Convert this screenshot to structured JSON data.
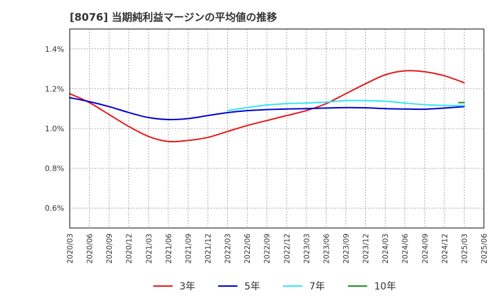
{
  "chart_data": {
    "type": "line",
    "title": "[8076]  当期純利益マージンの平均値の推移",
    "xlabel": "",
    "ylabel": "",
    "x_ticks": [
      "2020/03",
      "2020/06",
      "2020/09",
      "2020/12",
      "2021/03",
      "2021/06",
      "2021/09",
      "2021/12",
      "2022/03",
      "2022/06",
      "2022/09",
      "2022/12",
      "2023/03",
      "2023/06",
      "2023/09",
      "2023/12",
      "2024/03",
      "2024/06",
      "2024/09",
      "2024/12",
      "2025/03",
      "2025/06"
    ],
    "y_ticks": [
      "0.6%",
      "0.8%",
      "1.0%",
      "1.2%",
      "1.4%"
    ],
    "y_tick_values": [
      0.6,
      0.8,
      1.0,
      1.2,
      1.4
    ],
    "ylim": [
      0.5,
      1.5
    ],
    "grid": true,
    "legend_position": "bottom",
    "series": [
      {
        "name": "3年",
        "color": "#e31a1c",
        "x": [
          "2020/03",
          "2020/06",
          "2020/09",
          "2020/12",
          "2021/03",
          "2021/06",
          "2021/09",
          "2021/12",
          "2022/03",
          "2022/06",
          "2022/09",
          "2022/12",
          "2023/03",
          "2023/06",
          "2023/09",
          "2023/12",
          "2024/03",
          "2024/06",
          "2024/09",
          "2024/12",
          "2025/03"
        ],
        "values": [
          1.175,
          1.13,
          1.07,
          1.01,
          0.96,
          0.935,
          0.94,
          0.955,
          0.985,
          1.015,
          1.04,
          1.065,
          1.09,
          1.125,
          1.175,
          1.225,
          1.27,
          1.29,
          1.285,
          1.265,
          1.23
        ]
      },
      {
        "name": "5年",
        "color": "#0000cc",
        "x": [
          "2020/03",
          "2020/06",
          "2020/09",
          "2020/12",
          "2021/03",
          "2021/06",
          "2021/09",
          "2021/12",
          "2022/03",
          "2022/06",
          "2022/09",
          "2022/12",
          "2023/03",
          "2023/06",
          "2023/09",
          "2023/12",
          "2024/03",
          "2024/06",
          "2024/09",
          "2024/12",
          "2025/03"
        ],
        "values": [
          1.155,
          1.135,
          1.11,
          1.08,
          1.055,
          1.045,
          1.05,
          1.065,
          1.08,
          1.09,
          1.095,
          1.098,
          1.1,
          1.103,
          1.105,
          1.104,
          1.1,
          1.098,
          1.097,
          1.103,
          1.11
        ]
      },
      {
        "name": "7年",
        "color": "#33e5f5",
        "x": [
          "2022/03",
          "2022/06",
          "2022/09",
          "2022/12",
          "2023/03",
          "2023/06",
          "2023/09",
          "2023/12",
          "2024/03",
          "2024/06",
          "2024/09",
          "2024/12",
          "2025/03"
        ],
        "values": [
          1.09,
          1.105,
          1.118,
          1.125,
          1.128,
          1.133,
          1.14,
          1.14,
          1.137,
          1.128,
          1.12,
          1.116,
          1.115
        ]
      },
      {
        "name": "10年",
        "color": "#228b22",
        "x": [
          "2025/03"
        ],
        "values": [
          1.13
        ]
      }
    ]
  }
}
